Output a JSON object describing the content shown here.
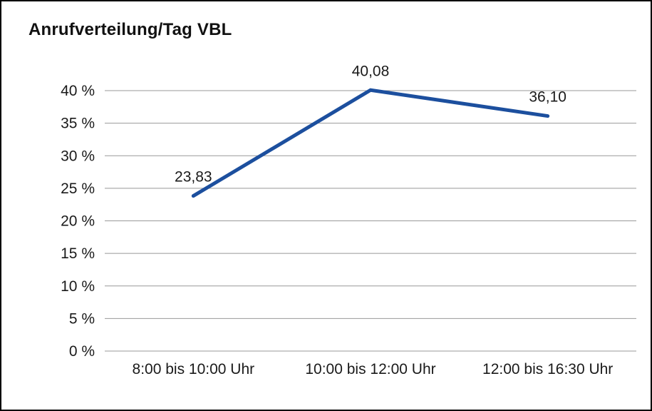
{
  "chart_data": {
    "type": "line",
    "title": "Anrufverteilung/Tag VBL",
    "categories": [
      "8:00 bis 10:00 Uhr",
      "10:00 bis 12:00 Uhr",
      "12:00 bis 16:30 Uhr"
    ],
    "values": [
      23.83,
      40.08,
      36.1
    ],
    "data_labels": [
      "23,83",
      "40,08",
      "36,10"
    ],
    "ylim": [
      0,
      40
    ],
    "ytick_step": 5,
    "ytick_suffix": " %",
    "grid": true,
    "legend": "none",
    "line_color": "#1c4f9e"
  },
  "colors": {
    "line": "#1c4f9e",
    "grid": "#999999",
    "text": "#1a1a1a",
    "frame_border": "#000000",
    "background": "#ffffff"
  }
}
